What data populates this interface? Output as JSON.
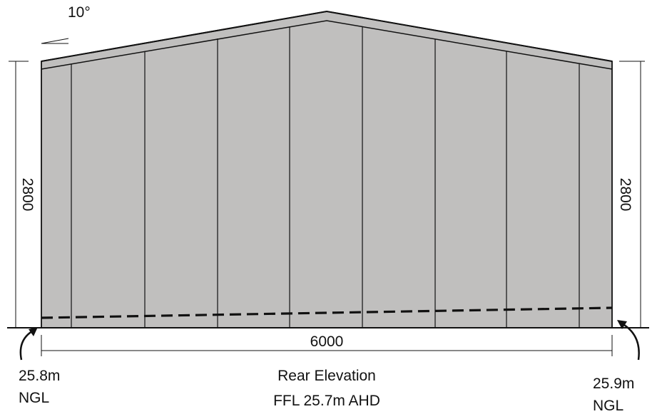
{
  "roof_pitch": "10°",
  "dimensions": {
    "left_height": "2800",
    "right_height": "2800",
    "width": "6000"
  },
  "ground_levels": {
    "left_value": "25.8m",
    "left_unit": "NGL",
    "right_value": "25.9m",
    "right_unit": "NGL"
  },
  "caption": {
    "title": "Rear Elevation",
    "subtitle": "FFL 25.7m AHD"
  },
  "colors": {
    "cladding": "#c0bfbe",
    "line": "#111111"
  }
}
